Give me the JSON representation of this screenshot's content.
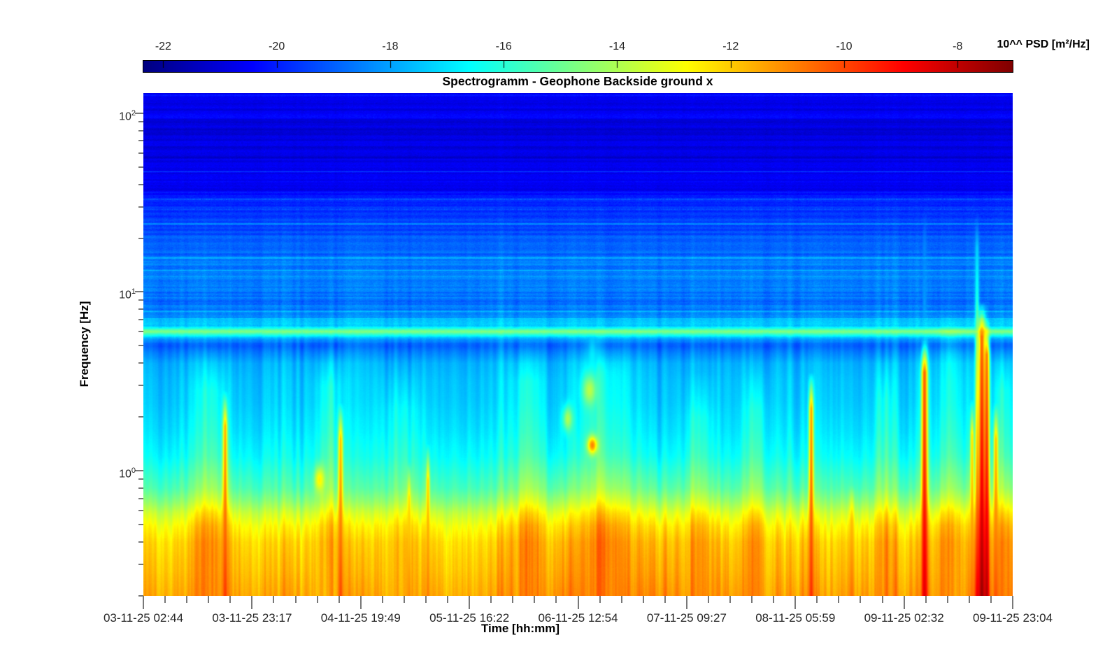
{
  "chart_data": {
    "type": "heatmap",
    "subtype": "spectrogram",
    "title": "Spectrogramm - Geophone Backside ground x",
    "xlabel": "Time [hh:mm]",
    "ylabel": "Frequency [Hz]",
    "colorbar_label": "10^^ PSD [m²/Hz]",
    "colormap": "jet",
    "grid": false,
    "legend": false,
    "value_range": [
      -22.35,
      -7.03
    ],
    "colorbar_ticks": [
      -22,
      -20,
      -18,
      -16,
      -14,
      -12,
      -10,
      -8
    ],
    "x_tick_labels": [
      "03-11-25 02:44",
      "03-11-25 23:17",
      "04-11-25 19:49",
      "05-11-25 16:22",
      "06-11-25 12:54",
      "07-11-25 09:27",
      "08-11-25 05:59",
      "09-11-25 02:32",
      "09-11-25 23:04"
    ],
    "x_minor_divisions": 5,
    "y_scale": "log",
    "f_min": 0.1995,
    "f_max": 129.7,
    "y_tick_exponents": [
      2,
      1,
      0
    ],
    "y_minor_ticks_hz": [
      0.2,
      0.3,
      0.4,
      0.5,
      0.6,
      0.7,
      0.8,
      0.9,
      2,
      3,
      4,
      5,
      6,
      7,
      8,
      9,
      20,
      30,
      40,
      50,
      60,
      70,
      80,
      90
    ],
    "background_profile": [
      [
        2.113,
        -20.25
      ],
      [
        2.06,
        -20.75
      ],
      [
        1.99,
        -20.6
      ],
      [
        1.93,
        -20.95
      ],
      [
        1.83,
        -21.05
      ],
      [
        1.74,
        -20.85
      ],
      [
        1.66,
        -20.9
      ],
      [
        1.58,
        -20.45
      ],
      [
        1.52,
        -19.95
      ],
      [
        1.44,
        -19.75
      ],
      [
        1.36,
        -19.45
      ],
      [
        1.27,
        -19.05
      ],
      [
        1.18,
        -18.75
      ],
      [
        1.08,
        -18.5
      ],
      [
        1.01,
        -18.55
      ],
      [
        0.96,
        -18.8
      ],
      [
        0.9,
        -18.55
      ],
      [
        0.86,
        -18.15
      ],
      [
        0.81,
        -17.4
      ],
      [
        0.794,
        -15.9
      ],
      [
        0.778,
        -14.65
      ],
      [
        0.76,
        -16.1
      ],
      [
        0.74,
        -17.9
      ],
      [
        0.71,
        -18.9
      ],
      [
        0.695,
        -18.95
      ],
      [
        0.66,
        -18.45
      ],
      [
        0.6,
        -17.75
      ],
      [
        0.5,
        -17.5
      ],
      [
        0.38,
        -17.35
      ],
      [
        0.22,
        -17.0
      ],
      [
        0.08,
        -16.55
      ],
      [
        -0.02,
        -15.95
      ],
      [
        -0.1,
        -15.45
      ],
      [
        -0.17,
        -14.6
      ],
      [
        -0.24,
        -13.55
      ],
      [
        -0.31,
        -12.8
      ],
      [
        -0.4,
        -12.2
      ],
      [
        -0.52,
        -11.9
      ],
      [
        -0.62,
        -11.75
      ],
      [
        -0.7,
        -11.65
      ]
    ],
    "narrowband_lines": [
      {
        "hz": 47,
        "boost": 1.7,
        "speckle": false
      },
      {
        "hz": 33,
        "boost": 1.1,
        "speckle": true
      },
      {
        "hz": 29,
        "boost": 0.8,
        "speckle": true
      },
      {
        "hz": 24,
        "boost": 1.4,
        "speckle": false
      },
      {
        "hz": 15.5,
        "boost": 1.0,
        "speckle": false
      },
      {
        "hz": 13.2,
        "boost": 0.9,
        "speckle": false
      },
      {
        "hz": 12.2,
        "boost": 0.8,
        "speckle": false
      },
      {
        "hz": 9.3,
        "boost": 0.6,
        "speckle": false
      },
      {
        "hz": 7.8,
        "boost": 0.7,
        "speckle": false
      },
      {
        "hz": 7.1,
        "boost": 0.6,
        "speckle": false
      }
    ],
    "time_modulation": [
      [
        0.0,
        0.1
      ],
      [
        0.04,
        0.16
      ],
      [
        0.08,
        0.3
      ],
      [
        0.105,
        0.22
      ],
      [
        0.13,
        0.02
      ],
      [
        0.19,
        -0.06
      ],
      [
        0.26,
        -0.1
      ],
      [
        0.33,
        -0.12
      ],
      [
        0.4,
        -0.04
      ],
      [
        0.435,
        0.22
      ],
      [
        0.47,
        0.38
      ],
      [
        0.52,
        0.45
      ],
      [
        0.57,
        0.42
      ],
      [
        0.62,
        0.32
      ],
      [
        0.68,
        0.18
      ],
      [
        0.74,
        0.1
      ],
      [
        0.8,
        0.12
      ],
      [
        0.86,
        0.1
      ],
      [
        0.9,
        0.16
      ],
      [
        0.94,
        0.22
      ],
      [
        0.97,
        0.28
      ],
      [
        1.0,
        0.3
      ]
    ],
    "events": [
      {
        "x": 0.0941,
        "w": 2.5,
        "v0": -9.8,
        "slope": 2.0,
        "top": 0.45
      },
      {
        "x": 0.2269,
        "w": 2.5,
        "v0": -10.0,
        "slope": 2.2,
        "top": 0.38
      },
      {
        "x": 0.3057,
        "w": 2.0,
        "v0": -11.0,
        "slope": 2.5,
        "top": 0.05
      },
      {
        "x": 0.3274,
        "w": 2.0,
        "v0": -10.8,
        "slope": 2.2,
        "top": 0.15
      },
      {
        "x": 0.5165,
        "w": 5.0,
        "v0": -13.5,
        "slope": 2.5,
        "top": 0.85
      },
      {
        "x": 0.7683,
        "w": 2.5,
        "v0": -9.6,
        "slope": 1.8,
        "top": 0.55
      },
      {
        "x": 0.815,
        "w": 2.5,
        "v0": -10.6,
        "slope": 3.0,
        "top": -0.08
      },
      {
        "x": 0.8986,
        "w": 3.5,
        "v0": -8.5,
        "slope": 1.6,
        "top": 0.75
      },
      {
        "x": 0.8986,
        "w": 1.8,
        "v0": -16.5,
        "slope": 1.0,
        "top": 1.45
      },
      {
        "x": 0.9533,
        "w": 2.0,
        "v0": -10.6,
        "slope": 2.0,
        "top": 0.4
      },
      {
        "x": 0.959,
        "w": 2.2,
        "v0": -9.0,
        "slope": 4.3,
        "top": 1.45
      },
      {
        "x": 0.9646,
        "w": 4.0,
        "v0": -7.4,
        "slope": 2.2,
        "top": 0.95
      },
      {
        "x": 0.9702,
        "w": 3.0,
        "v0": -7.8,
        "slope": 2.3,
        "top": 0.85
      },
      {
        "x": 0.9807,
        "w": 2.5,
        "v0": -10.2,
        "slope": 2.0,
        "top": 0.38
      }
    ],
    "streak_clusters": [
      {
        "x": 0.0764,
        "w": 18,
        "boost": 1.1,
        "top": 0.7
      },
      {
        "x": 0.2132,
        "w": 14,
        "boost": 1.2,
        "top": 0.72
      },
      {
        "x": 0.2977,
        "w": 20,
        "boost": 0.8,
        "top": 0.6
      },
      {
        "x": 0.4425,
        "w": 16,
        "boost": 1.2,
        "top": 0.75
      },
      {
        "x": 0.531,
        "w": 24,
        "boost": 1.3,
        "top": 0.8
      },
      {
        "x": 0.6396,
        "w": 14,
        "boost": 0.9,
        "top": 0.55
      },
      {
        "x": 0.7039,
        "w": 12,
        "boost": 1.0,
        "top": 0.6
      },
      {
        "x": 0.8528,
        "w": 10,
        "boost": 0.9,
        "top": 0.65
      },
      {
        "x": 0.9292,
        "w": 16,
        "boost": 1.2,
        "top": 0.9
      },
      {
        "x": 0.9895,
        "w": 10,
        "boost": 1.1,
        "top": 0.7
      }
    ],
    "blobs": [
      {
        "x": 0.5165,
        "logf": 0.143,
        "df": 0.035,
        "w": 5,
        "v": -10.9
      },
      {
        "x": 0.5133,
        "logf": 0.45,
        "df": 0.06,
        "w": 7,
        "v": -13.8
      },
      {
        "x": 0.4883,
        "logf": 0.29,
        "df": 0.05,
        "w": 5,
        "v": -14.0
      },
      {
        "x": 0.2027,
        "logf": -0.05,
        "df": 0.05,
        "w": 5,
        "v": -12.6
      }
    ]
  },
  "style": {
    "tick_color": "#787878",
    "label_color": "#262626",
    "title_color": "#000000",
    "background": "#ffffff"
  }
}
